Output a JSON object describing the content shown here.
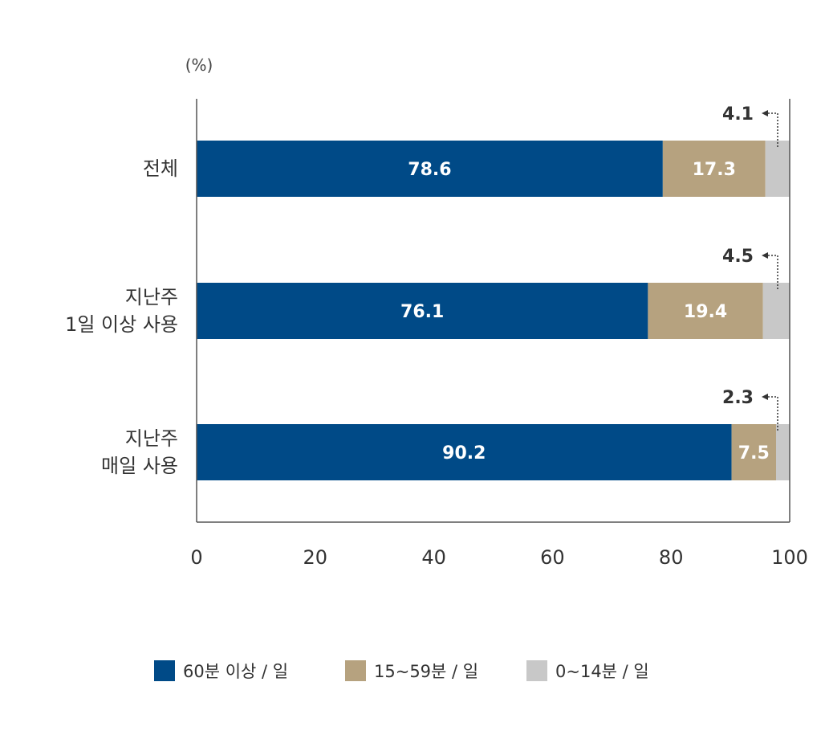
{
  "chart_data": {
    "type": "bar",
    "orientation": "horizontal",
    "stacked": true,
    "unit_label": "(%)",
    "categories": [
      [
        "전체"
      ],
      [
        "지난주",
        "1일 이상 사용"
      ],
      [
        "지난주",
        "매일 사용"
      ]
    ],
    "series": [
      {
        "name": "60분 이상 / 일",
        "color": "#004a87",
        "values": [
          78.6,
          76.1,
          90.2
        ]
      },
      {
        "name": "15~59분 / 일",
        "color": "#b6a27f",
        "values": [
          17.3,
          19.4,
          7.5
        ]
      },
      {
        "name": "0~14분 / 일",
        "color": "#c8c8c8",
        "values": [
          4.1,
          4.5,
          2.3
        ]
      }
    ],
    "xlim": [
      0,
      100
    ],
    "xticks": [
      0,
      20,
      40,
      60,
      80,
      100
    ],
    "grid": false,
    "legend": "bottom"
  }
}
